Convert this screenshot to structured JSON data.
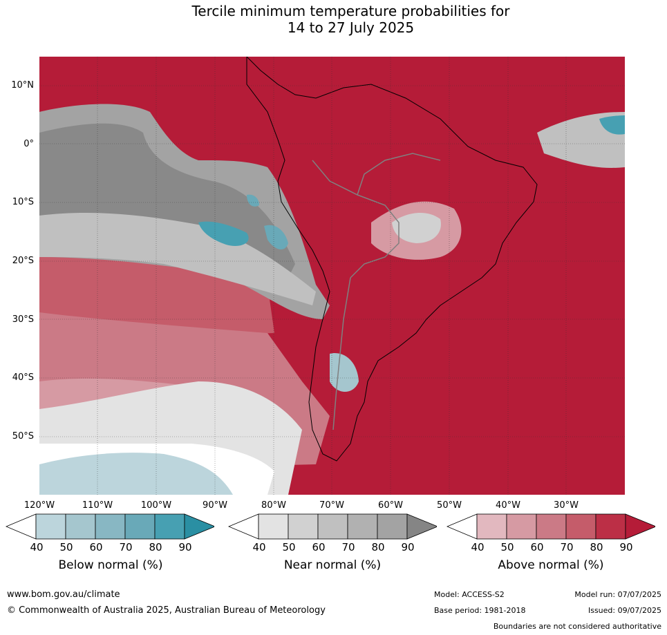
{
  "title_line1": "Tercile minimum temperature probabilities for",
  "title_line2": "14 to 27 July 2025",
  "lat_labels": [
    "10°N",
    "0°",
    "10°S",
    "20°S",
    "30°S",
    "40°S",
    "50°S"
  ],
  "lon_labels": [
    "120°W",
    "110°W",
    "100°W",
    "90°W",
    "80°W",
    "70°W",
    "60°W",
    "50°W",
    "40°W",
    "30°W"
  ],
  "legend": {
    "below": {
      "title": "Below normal (%)",
      "ticks": [
        "40",
        "50",
        "60",
        "70",
        "80",
        "90"
      ],
      "colors": [
        "#ffffff",
        "#bcd5dc",
        "#a5c6ce",
        "#88b7c3",
        "#69a9b8",
        "#47a0b2",
        "#2a8fa3"
      ]
    },
    "near": {
      "title": "Near normal (%)",
      "ticks": [
        "40",
        "50",
        "60",
        "70",
        "80",
        "90"
      ],
      "colors": [
        "#ffffff",
        "#e3e3e3",
        "#d1d1d1",
        "#c0c0c0",
        "#b1b1b1",
        "#a3a3a3",
        "#858585"
      ]
    },
    "above": {
      "title": "Above normal (%)",
      "ticks": [
        "40",
        "50",
        "60",
        "70",
        "80",
        "90"
      ],
      "colors": [
        "#ffffff",
        "#e2b8bf",
        "#d69aa3",
        "#cb7a86",
        "#c55c6a",
        "#bc2f46",
        "#b51c38"
      ]
    }
  },
  "footer": {
    "website": "www.bom.gov.au/climate",
    "copyright": "© Commonwealth of Australia 2025, Australian Bureau of Meteorology",
    "model": "Model: ACCESS-S2",
    "base_period": "Base period: 1981-2018",
    "model_run": "Model run: 07/07/2025",
    "issued": "Issued: 09/07/2025",
    "boundaries_note": "Boundaries are not considered authoritative"
  }
}
